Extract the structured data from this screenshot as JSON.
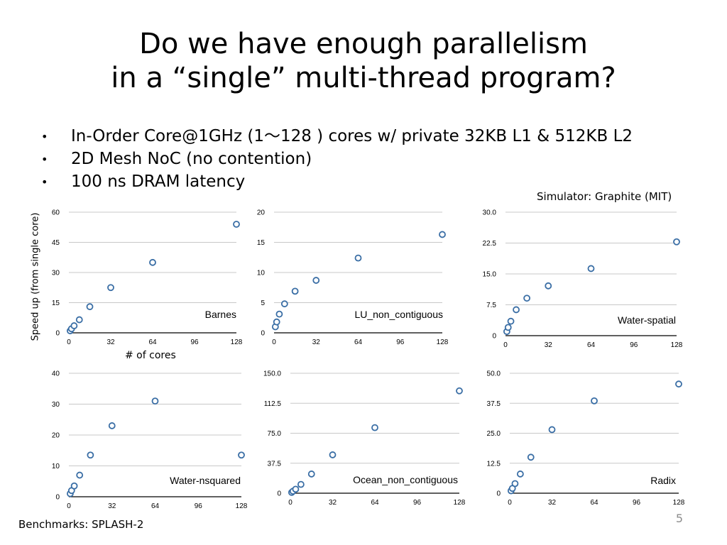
{
  "slide": {
    "title_line1": "Do we have enough parallelism",
    "title_line2": "in a “single” multi-thread program?",
    "bullets": [
      "In-Order Core@1GHz (1～128 ) cores w/ private 32KB L1 & 512KB L2",
      "2D Mesh NoC (no contention)",
      "100 ns DRAM latency"
    ],
    "bullet_glyph": "•",
    "simulator_note": "Simulator: Graphite (MIT)",
    "y_axis_label": "Speed up (from single core)",
    "x_axis_label": "# of cores",
    "benchmarks_note": "Benchmarks: SPLASH-2",
    "page_number": "5"
  },
  "colors": {
    "marker": "#3a6ea5",
    "gridline": "#c8c8c8",
    "axis": "#000000"
  },
  "chart_data": [
    {
      "type": "scatter",
      "name": "Barnes",
      "x": [
        1,
        2,
        4,
        8,
        16,
        32,
        64,
        128
      ],
      "y": [
        1,
        2,
        3.5,
        6.5,
        13,
        22.5,
        35,
        54
      ],
      "xticks": [
        "0",
        "32",
        "64",
        "96",
        "128"
      ],
      "xlim": [
        0,
        128
      ],
      "yticks": [
        "0",
        "15",
        "30",
        "45",
        "60"
      ],
      "ylim": [
        0,
        60
      ],
      "grid": true
    },
    {
      "type": "scatter",
      "name": "LU_non_contiguous",
      "x": [
        1,
        2,
        4,
        8,
        16,
        32,
        64,
        128
      ],
      "y": [
        1,
        1.8,
        3.1,
        4.8,
        6.9,
        8.7,
        12.4,
        16.3
      ],
      "xticks": [
        "0",
        "32",
        "64",
        "96",
        "128"
      ],
      "xlim": [
        0,
        128
      ],
      "yticks": [
        "0",
        "5",
        "10",
        "15",
        "20"
      ],
      "ylim": [
        0,
        20
      ],
      "grid": true
    },
    {
      "type": "scatter",
      "name": "Water-spatial",
      "x": [
        1,
        2,
        4,
        8,
        16,
        32,
        64,
        128
      ],
      "y": [
        1,
        2,
        3.5,
        6.3,
        9.1,
        12.1,
        16.3,
        22.8
      ],
      "xticks": [
        "0",
        "32",
        "64",
        "96",
        "128"
      ],
      "xlim": [
        0,
        128
      ],
      "yticks": [
        "0",
        "7.5",
        "15.0",
        "22.5",
        "30.0"
      ],
      "ylim": [
        0,
        30
      ],
      "grid": true
    },
    {
      "type": "scatter",
      "name": "Water-nsquared",
      "x": [
        1,
        2,
        4,
        8,
        16,
        32,
        64,
        128
      ],
      "y": [
        1,
        2,
        3.5,
        7,
        13.5,
        23,
        31,
        13.5
      ],
      "xticks": [
        "0",
        "32",
        "64",
        "96",
        "128"
      ],
      "xlim": [
        0,
        128
      ],
      "yticks": [
        "0",
        "10",
        "20",
        "30",
        "40"
      ],
      "ylim": [
        0,
        40
      ],
      "grid": true
    },
    {
      "type": "scatter",
      "name": "Ocean_non_contiguous",
      "x": [
        1,
        2,
        4,
        8,
        16,
        32,
        64,
        128
      ],
      "y": [
        1,
        2.5,
        5,
        11,
        24,
        48,
        82,
        128
      ],
      "xticks": [
        "0",
        "32",
        "64",
        "96",
        "128"
      ],
      "xlim": [
        0,
        128
      ],
      "yticks": [
        "0",
        "37.5",
        "75.0",
        "112.5",
        "150.0"
      ],
      "ylim": [
        0,
        150
      ],
      "grid": true
    },
    {
      "type": "scatter",
      "name": "Radix",
      "x": [
        1,
        2,
        4,
        8,
        16,
        32,
        64,
        128
      ],
      "y": [
        1,
        2,
        4,
        8,
        15,
        26.5,
        38.5,
        45.5
      ],
      "xticks": [
        "0",
        "32",
        "64",
        "96",
        "128"
      ],
      "xlim": [
        0,
        128
      ],
      "yticks": [
        "0",
        "12.5",
        "25.0",
        "37.5",
        "50.0"
      ],
      "ylim": [
        0,
        50
      ],
      "grid": true
    }
  ]
}
